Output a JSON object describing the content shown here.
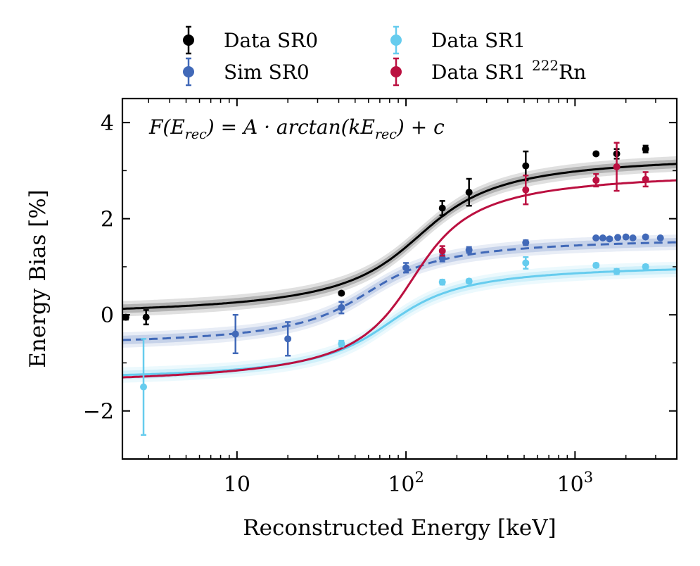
{
  "chart_data": {
    "type": "scatter",
    "title": "",
    "xlabel": "Reconstructed Energy [keV]",
    "ylabel": "Energy Bias [%]",
    "xscale": "log",
    "xlim": [
      2.1,
      4000
    ],
    "ylim": [
      -3.0,
      4.5
    ],
    "legend_position": "top-center",
    "legend_columns": 2,
    "annotation": "F(E_rec) = A · arctan(kE_rec) + c",
    "annotation_parts": {
      "f": "F(E",
      "sub": "rec",
      "mid": ") = A · arctan(kE",
      "sub2": "rec",
      "end": ") + c"
    },
    "x_tick_labels": [
      {
        "value": 10,
        "base": "10",
        "exp": ""
      },
      {
        "value": 100,
        "base": "10",
        "exp": "2"
      },
      {
        "value": 1000,
        "base": "10",
        "exp": "3"
      }
    ],
    "y_tick_labels": [
      {
        "value": 4,
        "label": "4"
      },
      {
        "value": 2,
        "label": "2"
      },
      {
        "value": 0,
        "label": "0"
      },
      {
        "value": -2,
        "label": "−2"
      }
    ],
    "series": [
      {
        "name": "Data SR0",
        "legend": "Data SR0",
        "legend_sup": "",
        "color": "#000000",
        "points": [
          {
            "x": 2.2,
            "y": -0.05,
            "err": 0.05
          },
          {
            "x": 2.9,
            "y": -0.05,
            "err": 0.15
          },
          {
            "x": 41.5,
            "y": 0.45,
            "err": 0.03
          },
          {
            "x": 164,
            "y": 2.22,
            "err": 0.15
          },
          {
            "x": 236,
            "y": 2.55,
            "err": 0.28
          },
          {
            "x": 511,
            "y": 3.1,
            "err": 0.3
          },
          {
            "x": 1332,
            "y": 3.35,
            "err": 0.03
          },
          {
            "x": 1764,
            "y": 3.35,
            "err": 0.1
          },
          {
            "x": 2615,
            "y": 3.45,
            "err": 0.07
          }
        ],
        "fit": {
          "low": -0.1,
          "high": 3.4,
          "mid": 120,
          "steep": 1.2,
          "style": "solid",
          "band": true,
          "band_color": "#000000"
        }
      },
      {
        "name": "Sim SR0",
        "legend": "Sim SR0",
        "legend_sup": "",
        "color": "#4169b8",
        "points": [
          {
            "x": 9.8,
            "y": -0.4,
            "err": 0.4
          },
          {
            "x": 20,
            "y": -0.5,
            "err": 0.35
          },
          {
            "x": 41.5,
            "y": 0.15,
            "err": 0.12
          },
          {
            "x": 100,
            "y": 0.98,
            "err": 0.1
          },
          {
            "x": 164,
            "y": 1.18,
            "err": 0.07
          },
          {
            "x": 236,
            "y": 1.35,
            "err": 0.06
          },
          {
            "x": 511,
            "y": 1.5,
            "err": 0.05
          },
          {
            "x": 1330,
            "y": 1.6,
            "err": 0.02
          },
          {
            "x": 1460,
            "y": 1.6,
            "err": 0.02
          },
          {
            "x": 1600,
            "y": 1.58,
            "err": 0.02
          },
          {
            "x": 1790,
            "y": 1.61,
            "err": 0.02
          },
          {
            "x": 2000,
            "y": 1.62,
            "err": 0.02
          },
          {
            "x": 2200,
            "y": 1.6,
            "err": 0.02
          },
          {
            "x": 2615,
            "y": 1.62,
            "err": 0.02
          },
          {
            "x": 3200,
            "y": 1.6,
            "err": 0.02
          }
        ],
        "fit": {
          "low": -0.7,
          "high": 1.65,
          "mid": 60,
          "steep": 1.25,
          "style": "dashed",
          "band": true,
          "band_color": "#4169b8"
        }
      },
      {
        "name": "Data SR1",
        "legend": "Data SR1",
        "legend_sup": "",
        "color": "#66ccee",
        "points": [
          {
            "x": 2.8,
            "y": -1.5,
            "err": 1.0
          },
          {
            "x": 41.5,
            "y": -0.6,
            "err": 0.06
          },
          {
            "x": 164,
            "y": 0.68,
            "err": 0.05
          },
          {
            "x": 236,
            "y": 0.7,
            "err": 0.04
          },
          {
            "x": 511,
            "y": 1.08,
            "err": 0.12
          },
          {
            "x": 1332,
            "y": 1.03,
            "err": 0.04
          },
          {
            "x": 1764,
            "y": 0.9,
            "err": 0.05
          },
          {
            "x": 2615,
            "y": 1.0,
            "err": 0.04
          }
        ],
        "fit": {
          "low": -1.42,
          "high": 1.1,
          "mid": 80,
          "steep": 1.3,
          "style": "solid",
          "band": true,
          "band_color": "#66ccee"
        }
      },
      {
        "name": "Data SR1 222Rn",
        "legend": "Data SR1 ",
        "legend_sup": "222",
        "legend_suffix": "Rn",
        "color": "#bb1040",
        "points": [
          {
            "x": 164,
            "y": 1.33,
            "err": 0.1
          },
          {
            "x": 511,
            "y": 2.6,
            "err": 0.3
          },
          {
            "x": 1332,
            "y": 2.8,
            "err": 0.13
          },
          {
            "x": 1764,
            "y": 3.08,
            "err": 0.5
          },
          {
            "x": 2615,
            "y": 2.82,
            "err": 0.15
          }
        ],
        "fit": {
          "low": -1.53,
          "high": 3.05,
          "mid": 110,
          "steep": 1.6,
          "style": "solid",
          "band": false,
          "band_color": "#bb1040"
        }
      }
    ]
  }
}
